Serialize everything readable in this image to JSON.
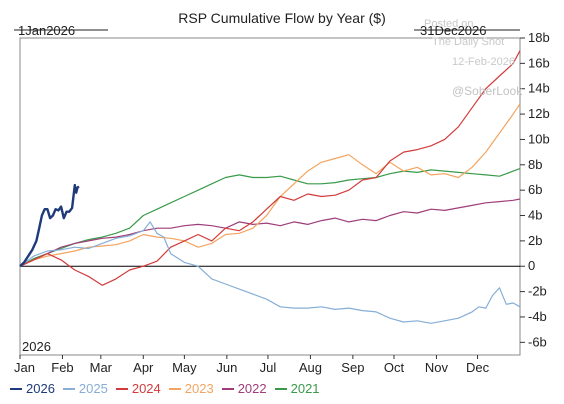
{
  "chart_data": {
    "type": "line",
    "title": "RSP Cumulative Flow by Year ($)",
    "range_start_label": "1Jan2026",
    "range_end_label": "31Dec2026",
    "year_label": "2026",
    "y_unit": "billions USD",
    "ylim": [
      -7,
      18
    ],
    "y_ticks": [
      18,
      16,
      14,
      12,
      10,
      8,
      6,
      4,
      2,
      0,
      -2,
      -4,
      -6
    ],
    "y_tick_labels": [
      "18b",
      "16b",
      "14b",
      "12b",
      "10b",
      "8b",
      "6b",
      "4b",
      "2b",
      "0",
      "-2b",
      "-4b",
      "-6b"
    ],
    "x_tick_labels": [
      "Jan",
      "Feb",
      "Mar",
      "Apr",
      "May",
      "Jun",
      "Jul",
      "Aug",
      "Sep",
      "Oct",
      "Nov",
      "Dec"
    ],
    "xlim_days": [
      0,
      365
    ],
    "grid": false,
    "legend_position": "bottom",
    "series": [
      {
        "name": "2026",
        "color": "#1f3a7a",
        "x": [
          0,
          3,
          6,
          9,
          12,
          14,
          16,
          18,
          20,
          22,
          24,
          26,
          28,
          30,
          32,
          34,
          36,
          38,
          40,
          41,
          42,
          43
        ],
        "y": [
          0,
          0.3,
          0.8,
          1.3,
          2.0,
          3.0,
          4.0,
          4.5,
          4.5,
          3.8,
          4.0,
          4.5,
          4.4,
          4.7,
          3.8,
          4.3,
          4.3,
          4.6,
          6.4,
          5.8,
          6.2,
          6.3
        ]
      },
      {
        "name": "2025",
        "color": "#86aed6",
        "x": [
          0,
          10,
          20,
          30,
          40,
          50,
          60,
          70,
          80,
          90,
          95,
          100,
          105,
          110,
          120,
          130,
          135,
          140,
          150,
          160,
          170,
          180,
          190,
          200,
          210,
          220,
          230,
          240,
          250,
          260,
          270,
          280,
          290,
          300,
          310,
          320,
          330,
          335,
          340,
          345,
          350,
          355,
          360,
          365
        ],
        "y": [
          0,
          0.8,
          1.2,
          1.3,
          1.5,
          1.4,
          1.8,
          2.2,
          2.4,
          2.8,
          3.5,
          2.6,
          2.3,
          1.0,
          0.3,
          0.0,
          -0.5,
          -1.0,
          -1.4,
          -1.8,
          -2.2,
          -2.6,
          -3.2,
          -3.3,
          -3.3,
          -3.2,
          -3.4,
          -3.3,
          -3.5,
          -3.6,
          -4.1,
          -4.4,
          -4.3,
          -4.5,
          -4.3,
          -4.1,
          -3.6,
          -3.2,
          -3.3,
          -2.3,
          -1.7,
          -3.0,
          -2.9,
          -3.2
        ]
      },
      {
        "name": "2024",
        "color": "#d23b3b",
        "x": [
          0,
          10,
          20,
          30,
          40,
          50,
          60,
          70,
          80,
          90,
          100,
          110,
          120,
          130,
          140,
          150,
          160,
          170,
          180,
          190,
          200,
          210,
          220,
          230,
          240,
          250,
          260,
          270,
          280,
          290,
          300,
          310,
          320,
          330,
          340,
          350,
          360,
          365
        ],
        "y": [
          0,
          0.5,
          1.0,
          0.5,
          -0.3,
          -0.8,
          -1.5,
          -1.0,
          -0.3,
          0.0,
          0.4,
          1.5,
          2.0,
          2.5,
          2.0,
          3.0,
          2.8,
          3.5,
          4.5,
          5.5,
          5.2,
          5.7,
          5.5,
          5.6,
          6.0,
          6.8,
          7.0,
          8.3,
          9.0,
          9.2,
          9.5,
          10.0,
          11.0,
          12.5,
          14.0,
          15.0,
          16.0,
          17.0
        ]
      },
      {
        "name": "2023",
        "color": "#f4a460",
        "x": [
          0,
          10,
          20,
          30,
          40,
          50,
          60,
          70,
          80,
          90,
          100,
          110,
          120,
          130,
          140,
          150,
          160,
          170,
          180,
          190,
          200,
          210,
          220,
          230,
          240,
          250,
          260,
          270,
          280,
          290,
          300,
          310,
          320,
          330,
          340,
          350,
          360,
          365
        ],
        "y": [
          0,
          0.5,
          0.8,
          1.0,
          1.2,
          1.5,
          1.6,
          1.7,
          2.0,
          2.5,
          2.3,
          2.2,
          2.0,
          1.5,
          1.8,
          2.5,
          2.6,
          3.0,
          4.0,
          5.5,
          6.5,
          7.5,
          8.2,
          8.5,
          8.8,
          8.0,
          7.3,
          8.2,
          7.5,
          7.8,
          7.2,
          7.3,
          7.0,
          7.8,
          9.0,
          10.5,
          12.0,
          12.8
        ]
      },
      {
        "name": "2022",
        "color": "#9e3d7a",
        "x": [
          0,
          10,
          20,
          30,
          40,
          50,
          60,
          70,
          80,
          90,
          100,
          110,
          120,
          130,
          140,
          150,
          160,
          170,
          180,
          190,
          200,
          210,
          220,
          230,
          240,
          250,
          260,
          270,
          280,
          290,
          300,
          310,
          320,
          330,
          340,
          350,
          360,
          365
        ],
        "y": [
          0,
          0.5,
          1.0,
          1.5,
          1.8,
          2.0,
          2.2,
          2.3,
          2.5,
          2.8,
          3.0,
          3.0,
          3.2,
          3.3,
          3.2,
          3.0,
          3.5,
          3.3,
          3.4,
          3.2,
          3.5,
          3.3,
          3.6,
          3.8,
          3.5,
          3.7,
          3.6,
          4.0,
          4.3,
          4.2,
          4.5,
          4.4,
          4.6,
          4.8,
          5.0,
          5.1,
          5.2,
          5.3
        ]
      },
      {
        "name": "2021",
        "color": "#3a9a4a",
        "x": [
          0,
          10,
          20,
          30,
          40,
          50,
          60,
          70,
          80,
          90,
          100,
          110,
          120,
          130,
          140,
          150,
          160,
          170,
          180,
          190,
          200,
          210,
          220,
          230,
          240,
          250,
          260,
          270,
          280,
          290,
          300,
          310,
          320,
          330,
          340,
          350,
          355,
          360,
          365
        ],
        "y": [
          0,
          0.6,
          1.0,
          1.4,
          1.8,
          2.1,
          2.3,
          2.6,
          3.0,
          4.0,
          4.5,
          5.0,
          5.5,
          6.0,
          6.5,
          7.0,
          7.2,
          7.0,
          7.0,
          7.1,
          6.8,
          6.5,
          6.5,
          6.6,
          6.8,
          6.9,
          7.0,
          7.3,
          7.5,
          7.4,
          7.6,
          7.5,
          7.4,
          7.3,
          7.2,
          7.1,
          7.3,
          7.5,
          7.7
        ]
      }
    ]
  },
  "watermark": {
    "line1": "Posted on",
    "line2": "The Daily Shot",
    "line3": "12-Feb-2026",
    "brand": "@SoberLook"
  }
}
